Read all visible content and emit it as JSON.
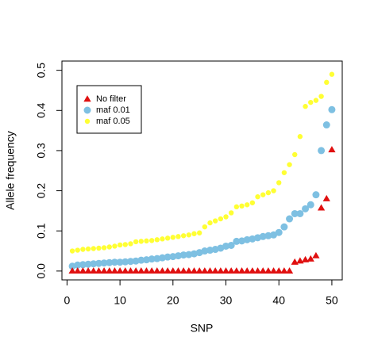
{
  "chart_data": {
    "type": "scatter",
    "xlabel": "SNP",
    "ylabel": "Allele frequency",
    "x": [
      1,
      2,
      3,
      4,
      5,
      6,
      7,
      8,
      9,
      10,
      11,
      12,
      13,
      14,
      15,
      16,
      17,
      18,
      19,
      20,
      21,
      22,
      23,
      24,
      25,
      26,
      27,
      28,
      29,
      30,
      31,
      32,
      33,
      34,
      35,
      36,
      37,
      38,
      39,
      40,
      41,
      42,
      43,
      44,
      45,
      46,
      47,
      48,
      49,
      50
    ],
    "series": [
      {
        "name": "No filter",
        "color": "#e01010",
        "marker": "triangle",
        "values": [
          0,
          0,
          0,
          0,
          0,
          0,
          0,
          0,
          0,
          0,
          0,
          0,
          0,
          0,
          0,
          0,
          0,
          0,
          0,
          0,
          0,
          0,
          0,
          0,
          0,
          0,
          0,
          0,
          0,
          0,
          0,
          0,
          0,
          0,
          0,
          0,
          0,
          0,
          0,
          0,
          0,
          0,
          0.022,
          0.025,
          0.028,
          0.03,
          0.038,
          0.157,
          0.18,
          0.302
        ]
      },
      {
        "name": "maf 0.01",
        "color": "#7ec0e2",
        "marker": "circle",
        "values": [
          0.012,
          0.015,
          0.016,
          0.017,
          0.018,
          0.019,
          0.02,
          0.021,
          0.022,
          0.022,
          0.023,
          0.024,
          0.025,
          0.027,
          0.028,
          0.03,
          0.031,
          0.033,
          0.035,
          0.036,
          0.038,
          0.04,
          0.041,
          0.043,
          0.046,
          0.05,
          0.052,
          0.054,
          0.057,
          0.062,
          0.064,
          0.074,
          0.075,
          0.078,
          0.08,
          0.083,
          0.086,
          0.088,
          0.09,
          0.096,
          0.11,
          0.13,
          0.143,
          0.143,
          0.155,
          0.165,
          0.19,
          0.3,
          0.364,
          0.402
        ]
      },
      {
        "name": "maf 0.05",
        "color": "#ffff33",
        "marker": "circle",
        "values": [
          0.05,
          0.052,
          0.054,
          0.055,
          0.056,
          0.057,
          0.058,
          0.06,
          0.062,
          0.065,
          0.066,
          0.068,
          0.073,
          0.074,
          0.075,
          0.076,
          0.078,
          0.08,
          0.082,
          0.084,
          0.086,
          0.088,
          0.09,
          0.093,
          0.095,
          0.11,
          0.12,
          0.125,
          0.13,
          0.135,
          0.145,
          0.16,
          0.162,
          0.165,
          0.17,
          0.185,
          0.19,
          0.195,
          0.2,
          0.22,
          0.245,
          0.265,
          0.29,
          0.335,
          0.41,
          0.42,
          0.425,
          0.435,
          0.47,
          0.49
        ]
      }
    ],
    "xlim": [
      -0.96,
      51.96
    ],
    "xticks": [
      0,
      10,
      20,
      30,
      40,
      50
    ],
    "ylim": [
      -0.022,
      0.523
    ],
    "yticks": [
      {
        "value": 0,
        "label": "0.0"
      },
      0.1,
      0.2,
      0.3,
      0.4,
      0.5
    ],
    "legend": "top-left"
  }
}
